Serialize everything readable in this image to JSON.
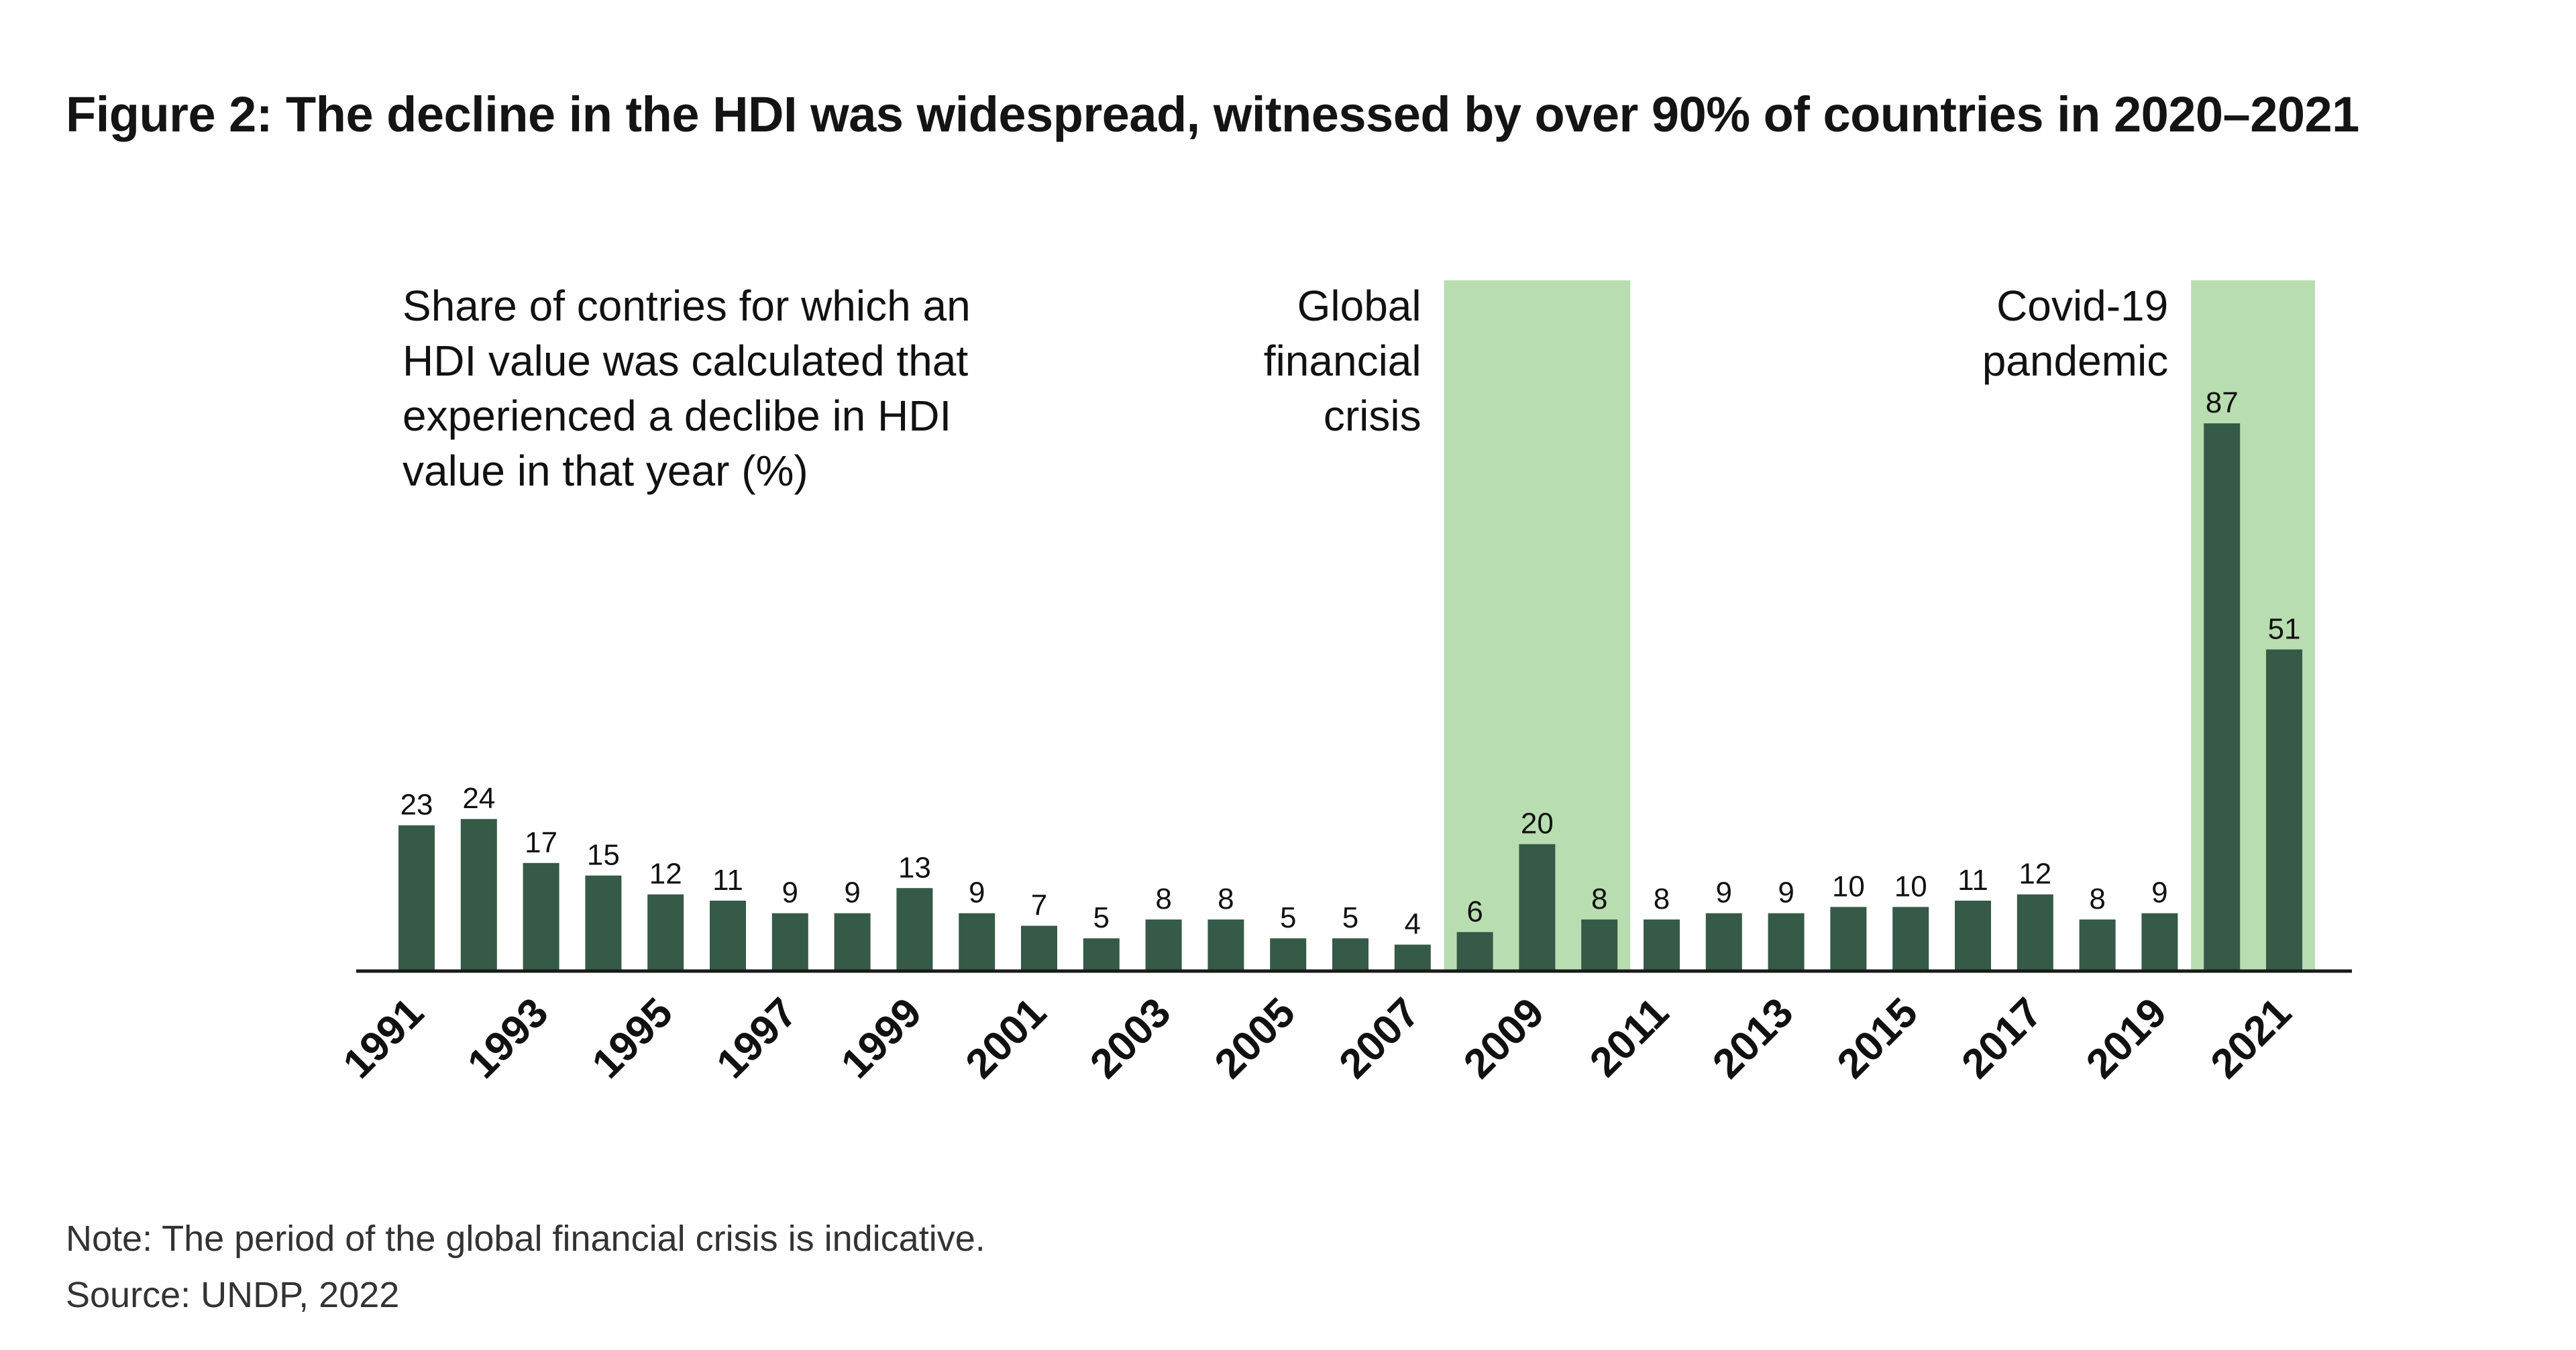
{
  "title": "Figure 2: The decline in the HDI was widespread, witnessed by over 90% of countries in 2020–2021",
  "colors": {
    "bar": "#355a47",
    "highlight": "#b8ddb0",
    "axis": "#1a1a1a",
    "text": "#111111"
  },
  "chart_data": {
    "type": "bar",
    "title": "Share of contries for which an HDI value was calculated that experienced a declibe in HDI value in that year (%)",
    "title_lines": [
      "Share of contries for which an",
      "HDI value was calculated that",
      "experienced a declibe in HDI",
      "value in that year (%)"
    ],
    "xlabel": "",
    "ylabel": "",
    "ylim": [
      0,
      100
    ],
    "grid": false,
    "categories": [
      "1991",
      "1992",
      "1993",
      "1994",
      "1995",
      "1996",
      "1997",
      "1998",
      "1999",
      "2000",
      "2001",
      "2002",
      "2003",
      "2004",
      "2005",
      "2006",
      "2007",
      "2008",
      "2009",
      "2010",
      "2011",
      "2012",
      "2013",
      "2014",
      "2015",
      "2016",
      "2017",
      "2018",
      "2019",
      "2020",
      "2021"
    ],
    "values": [
      23,
      24,
      17,
      15,
      12,
      11,
      9,
      9,
      13,
      9,
      7,
      5,
      8,
      8,
      5,
      5,
      4,
      6,
      20,
      8,
      8,
      9,
      9,
      10,
      10,
      11,
      12,
      8,
      9,
      87,
      51
    ],
    "tick_labels": [
      "1991",
      "1993",
      "1995",
      "1997",
      "1999",
      "2001",
      "2003",
      "2005",
      "2007",
      "2009",
      "2011",
      "2013",
      "2015",
      "2017",
      "2019",
      "2021"
    ],
    "annotations": [
      {
        "name": "global-financial-crisis",
        "lines": [
          "Global",
          "financial",
          "crisis"
        ],
        "span": [
          "2008",
          "2010"
        ]
      },
      {
        "name": "covid-19-pandemic",
        "lines": [
          "Covid-19",
          "pandemic"
        ],
        "span": [
          "2020",
          "2021"
        ]
      }
    ]
  },
  "footer": {
    "note": "Note: The period of the global financial crisis is indicative.",
    "source": "Source: UNDP, 2022"
  }
}
